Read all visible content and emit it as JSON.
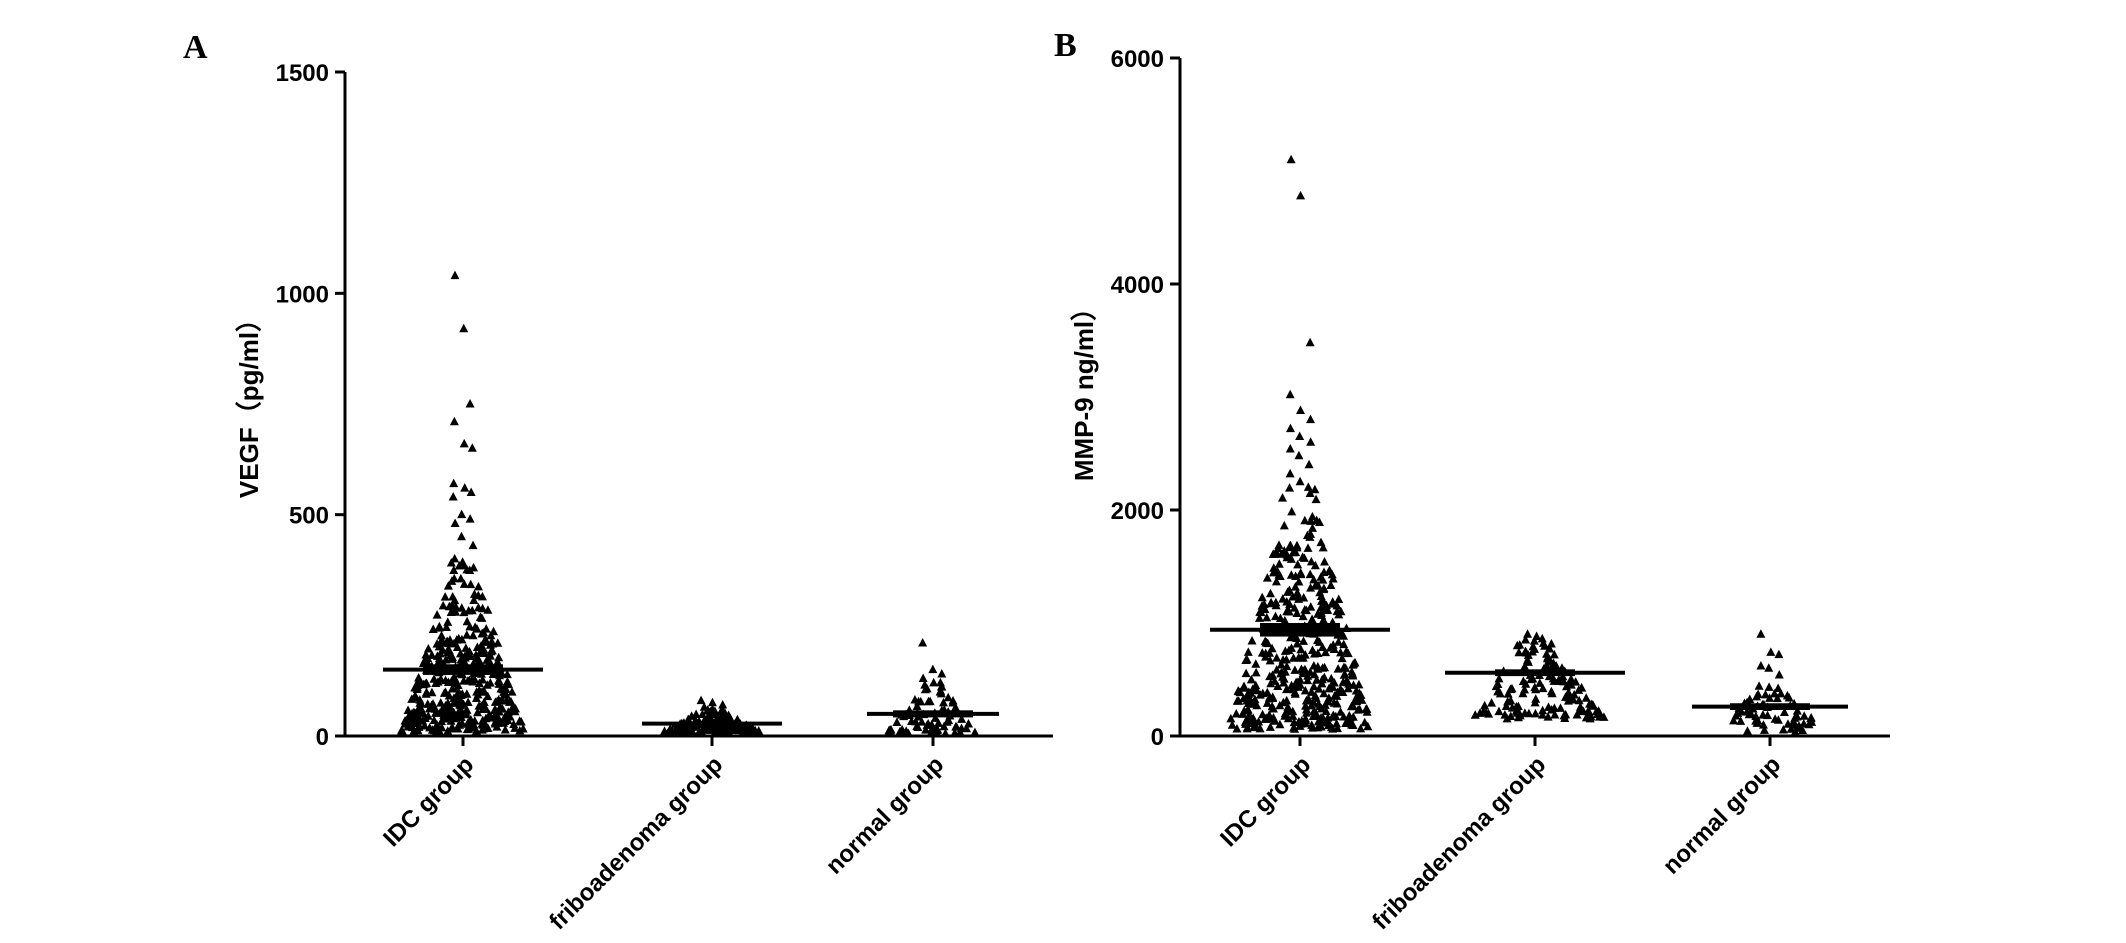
{
  "figure": {
    "panels": [
      {
        "label": "A"
      },
      {
        "label": "B"
      }
    ]
  },
  "chart_data": [
    {
      "type": "scatter",
      "subtype": "dot-plot with mean line and SEM",
      "panel": "A",
      "title": "",
      "xlabel": "",
      "ylabel": "VEGF（pg/ml）",
      "ylim": [
        0,
        1500
      ],
      "yticks": [
        0,
        500,
        1000,
        1500
      ],
      "categories": [
        "IDC group",
        "friboadenoma group",
        "normal group"
      ],
      "marker": "triangle",
      "grid": false,
      "groups": [
        {
          "name": "IDC group",
          "mean": 150,
          "sem": 12,
          "n_approx": 420,
          "outliers": [
            1040,
            920,
            750,
            710,
            660,
            650,
            570,
            560,
            550,
            540,
            500,
            490,
            480,
            450,
            430,
            400
          ],
          "range_min": 10
        },
        {
          "name": "friboadenoma group",
          "mean": 28,
          "sem": 4,
          "n_approx": 140,
          "outliers": [
            80,
            75,
            70,
            65,
            60
          ],
          "range_min": 5
        },
        {
          "name": "normal group",
          "mean": 50,
          "sem": 8,
          "n_approx": 75,
          "outliers": [
            210,
            150,
            140,
            130,
            120,
            120,
            115
          ],
          "range_min": 5
        }
      ]
    },
    {
      "type": "scatter",
      "subtype": "dot-plot with mean line and SEM",
      "panel": "B",
      "title": "",
      "xlabel": "",
      "ylabel": "MMP-9  ng/ml）",
      "ylim": [
        0,
        6000
      ],
      "yticks": [
        0,
        2000,
        4000,
        6000
      ],
      "categories": [
        "IDC group",
        "friboadenoma group",
        "normal group"
      ],
      "marker": "triangle",
      "grid": false,
      "groups": [
        {
          "name": "IDC group",
          "mean": 940,
          "sem": 60,
          "n_approx": 440,
          "outliers": [
            5100,
            4780,
            3480,
            3020,
            2880,
            2800,
            2720,
            2650,
            2600,
            2540,
            2480,
            2400,
            2320,
            2250,
            2200
          ],
          "range_min": 60
        },
        {
          "name": "friboadenoma group",
          "mean": 560,
          "sem": 30,
          "n_approx": 140,
          "outliers": [
            900,
            880,
            860,
            850,
            840,
            820
          ],
          "range_min": 150
        },
        {
          "name": "normal group",
          "mean": 260,
          "sem": 30,
          "n_approx": 60,
          "outliers": [
            900,
            740,
            720,
            620,
            600,
            540,
            440,
            430,
            420
          ],
          "range_min": 30
        }
      ]
    }
  ]
}
